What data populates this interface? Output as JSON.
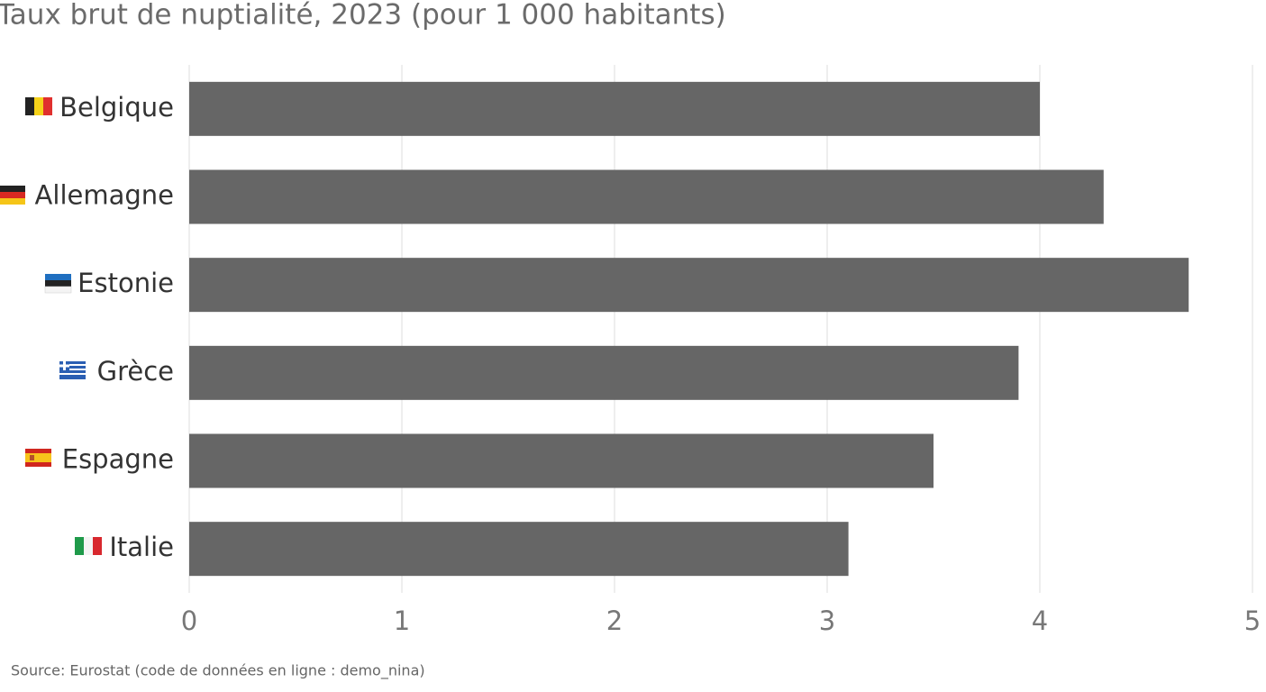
{
  "chart_data": {
    "type": "bar",
    "orientation": "horizontal",
    "title": "Taux brut de nuptialité, 2023 (pour 1 000 habitants)",
    "source": "Source: Eurostat (code de données en ligne : demo_nina)",
    "categories": [
      "Belgique",
      "Allemagne",
      "Estonie",
      "Grèce",
      "Espagne",
      "Italie"
    ],
    "values": [
      4.0,
      4.3,
      4.7,
      3.9,
      3.5,
      3.1
    ],
    "color": "#666666",
    "xlim": [
      0,
      5
    ],
    "xticks": [
      0,
      1,
      2,
      3,
      4,
      5
    ],
    "grid": true
  }
}
